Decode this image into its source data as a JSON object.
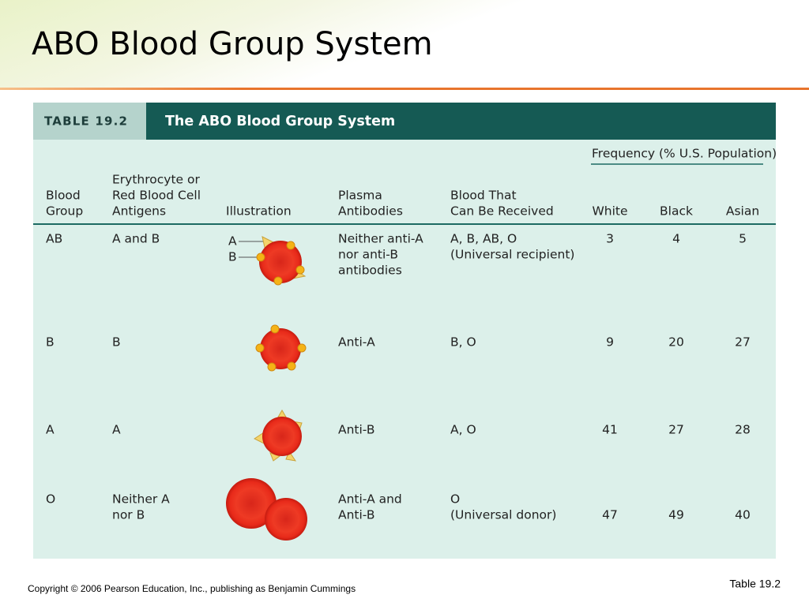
{
  "slide": {
    "title": "ABO Blood Group System",
    "footer": "Copyright © 2006 Pearson Education, Inc., publishing as Benjamin Cummings",
    "label": "Table 19.2"
  },
  "table": {
    "number": "TABLE 19.2",
    "title": "The ABO Blood Group System",
    "group_header": "Frequency (% U.S. Population)",
    "columns": [
      [
        "Blood",
        "Group"
      ],
      [
        "Erythrocyte or",
        "Red Blood Cell",
        "Antigens"
      ],
      [
        "Illustration"
      ],
      [
        "Plasma",
        "Antibodies"
      ],
      [
        "Blood That",
        "Can Be Received"
      ],
      [
        "White"
      ],
      [
        "Black"
      ],
      [
        "Asian"
      ]
    ],
    "illustration_labels": [
      "A",
      "B"
    ],
    "rows": [
      {
        "group": [
          "AB"
        ],
        "antigens": [
          "A and B"
        ],
        "antibodies": [
          "Neither anti-A",
          "nor anti-B",
          "antibodies"
        ],
        "received": [
          "A, B, AB, O",
          "(Universal recipient)"
        ],
        "white": 3,
        "black": 4,
        "asian": 5
      },
      {
        "group": [
          "B"
        ],
        "antigens": [
          "B"
        ],
        "antibodies": [
          "Anti-A"
        ],
        "received": [
          "B, O"
        ],
        "white": 9,
        "black": 20,
        "asian": 27
      },
      {
        "group": [
          "A"
        ],
        "antigens": [
          "A"
        ],
        "antibodies": [
          "Anti-B"
        ],
        "received": [
          "A, O"
        ],
        "white": 41,
        "black": 27,
        "asian": 28
      },
      {
        "group": [
          "O"
        ],
        "antigens": [
          "Neither A",
          "nor B"
        ],
        "antibodies": [
          "Anti-A and",
          "Anti-B"
        ],
        "received": [
          "O",
          "(Universal donor)"
        ],
        "white": 47,
        "black": 49,
        "asian": 40
      }
    ]
  }
}
